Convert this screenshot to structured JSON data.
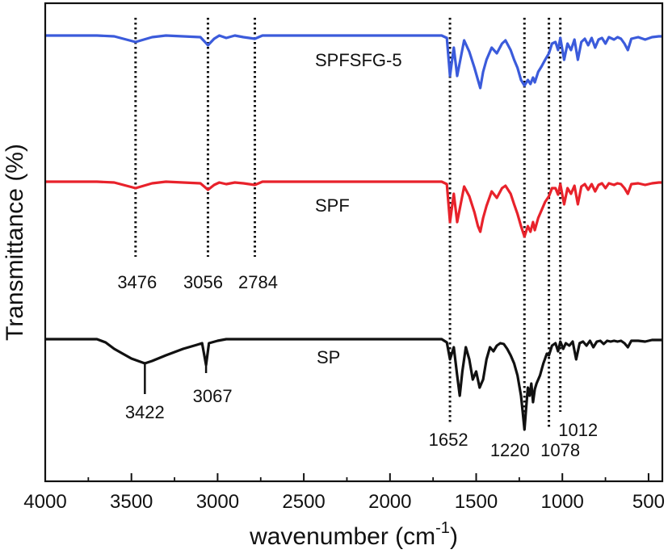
{
  "chart_data": {
    "type": "line",
    "title": "",
    "xlabel": "wavenumber (cm",
    "xlabel_sup": "-1",
    "xlabel_close": ")",
    "ylabel": "Transmittance (%)",
    "xlim": [
      4000,
      420
    ],
    "x_reversed": true,
    "x_ticks": [
      4000,
      3500,
      3000,
      2500,
      2000,
      1500,
      1000,
      500
    ],
    "x_tick_labels": [
      "4000",
      "3500",
      "3000",
      "2500",
      "2000",
      "1500",
      "1000",
      "500"
    ],
    "y_ticks_shown": false,
    "grid": false,
    "legend": "none (series labels placed inside plot)",
    "series": [
      {
        "name": "SPFSFG-5",
        "color": "#3b5bdb",
        "points": [
          [
            4000,
            0
          ],
          [
            3700,
            0
          ],
          [
            3600,
            -1
          ],
          [
            3476,
            -8
          ],
          [
            3380,
            -2
          ],
          [
            3300,
            0
          ],
          [
            3200,
            -1
          ],
          [
            3100,
            -2
          ],
          [
            3056,
            -12
          ],
          [
            3020,
            -4
          ],
          [
            2990,
            0
          ],
          [
            2950,
            -3
          ],
          [
            2900,
            0
          ],
          [
            2850,
            -2
          ],
          [
            2784,
            -4
          ],
          [
            2740,
            0
          ],
          [
            2600,
            0
          ],
          [
            2400,
            0
          ],
          [
            2200,
            0
          ],
          [
            2000,
            0
          ],
          [
            1800,
            0
          ],
          [
            1700,
            0
          ],
          [
            1670,
            -3
          ],
          [
            1652,
            -50
          ],
          [
            1630,
            -15
          ],
          [
            1610,
            -50
          ],
          [
            1590,
            -28
          ],
          [
            1570,
            -6
          ],
          [
            1540,
            -20
          ],
          [
            1510,
            -40
          ],
          [
            1490,
            -55
          ],
          [
            1476,
            -65
          ],
          [
            1460,
            -45
          ],
          [
            1440,
            -30
          ],
          [
            1410,
            -15
          ],
          [
            1380,
            -22
          ],
          [
            1350,
            -10
          ],
          [
            1330,
            -6
          ],
          [
            1300,
            -18
          ],
          [
            1280,
            -30
          ],
          [
            1260,
            -40
          ],
          [
            1240,
            -55
          ],
          [
            1220,
            -62
          ],
          [
            1200,
            -55
          ],
          [
            1185,
            -60
          ],
          [
            1170,
            -52
          ],
          [
            1160,
            -58
          ],
          [
            1140,
            -45
          ],
          [
            1120,
            -38
          ],
          [
            1100,
            -30
          ],
          [
            1078,
            -22
          ],
          [
            1060,
            -10
          ],
          [
            1040,
            -8
          ],
          [
            1025,
            -18
          ],
          [
            1012,
            -3
          ],
          [
            990,
            -30
          ],
          [
            970,
            -10
          ],
          [
            950,
            -18
          ],
          [
            930,
            -5
          ],
          [
            910,
            -30
          ],
          [
            890,
            -8
          ],
          [
            870,
            -4
          ],
          [
            850,
            -12
          ],
          [
            830,
            -3
          ],
          [
            810,
            -15
          ],
          [
            790,
            -5
          ],
          [
            770,
            -3
          ],
          [
            750,
            -10
          ],
          [
            730,
            -2
          ],
          [
            700,
            -5
          ],
          [
            680,
            -2
          ],
          [
            660,
            -4
          ],
          [
            640,
            -10
          ],
          [
            620,
            -18
          ],
          [
            600,
            -4
          ],
          [
            560,
            -2
          ],
          [
            520,
            -5
          ],
          [
            480,
            -2
          ],
          [
            440,
            -1
          ],
          [
            420,
            -1
          ]
        ]
      },
      {
        "name": "SPF",
        "color": "#e8222b",
        "points": [
          [
            4000,
            0
          ],
          [
            3700,
            0
          ],
          [
            3600,
            -1
          ],
          [
            3476,
            -8
          ],
          [
            3380,
            -2
          ],
          [
            3300,
            0
          ],
          [
            3200,
            -1
          ],
          [
            3100,
            -2
          ],
          [
            3056,
            -10
          ],
          [
            3020,
            -4
          ],
          [
            2990,
            -1
          ],
          [
            2950,
            -3
          ],
          [
            2900,
            -1
          ],
          [
            2850,
            -2
          ],
          [
            2784,
            -4
          ],
          [
            2740,
            0
          ],
          [
            2600,
            0
          ],
          [
            2400,
            0
          ],
          [
            2200,
            0
          ],
          [
            2000,
            0
          ],
          [
            1800,
            0
          ],
          [
            1700,
            0
          ],
          [
            1670,
            -3
          ],
          [
            1652,
            -50
          ],
          [
            1630,
            -15
          ],
          [
            1610,
            -50
          ],
          [
            1590,
            -28
          ],
          [
            1570,
            -6
          ],
          [
            1540,
            -18
          ],
          [
            1510,
            -38
          ],
          [
            1490,
            -55
          ],
          [
            1476,
            -62
          ],
          [
            1460,
            -45
          ],
          [
            1440,
            -30
          ],
          [
            1410,
            -12
          ],
          [
            1380,
            -20
          ],
          [
            1350,
            -8
          ],
          [
            1330,
            -5
          ],
          [
            1300,
            -15
          ],
          [
            1280,
            -28
          ],
          [
            1260,
            -40
          ],
          [
            1240,
            -55
          ],
          [
            1220,
            -68
          ],
          [
            1200,
            -55
          ],
          [
            1185,
            -62
          ],
          [
            1170,
            -50
          ],
          [
            1160,
            -60
          ],
          [
            1140,
            -45
          ],
          [
            1120,
            -35
          ],
          [
            1100,
            -25
          ],
          [
            1078,
            -18
          ],
          [
            1060,
            -8
          ],
          [
            1040,
            -8
          ],
          [
            1025,
            -16
          ],
          [
            1012,
            -3
          ],
          [
            990,
            -28
          ],
          [
            970,
            -8
          ],
          [
            950,
            -15
          ],
          [
            930,
            -5
          ],
          [
            910,
            -28
          ],
          [
            890,
            -6
          ],
          [
            870,
            -3
          ],
          [
            850,
            -10
          ],
          [
            830,
            -3
          ],
          [
            810,
            -12
          ],
          [
            790,
            -4
          ],
          [
            770,
            -2
          ],
          [
            750,
            -8
          ],
          [
            730,
            -2
          ],
          [
            700,
            -4
          ],
          [
            680,
            -2
          ],
          [
            660,
            -3
          ],
          [
            640,
            -8
          ],
          [
            620,
            -15
          ],
          [
            600,
            -3
          ],
          [
            560,
            -2
          ],
          [
            520,
            -4
          ],
          [
            480,
            -2
          ],
          [
            440,
            -1
          ],
          [
            420,
            -1
          ]
        ]
      },
      {
        "name": "SP",
        "color": "#111111",
        "points": [
          [
            4000,
            0
          ],
          [
            3700,
            0
          ],
          [
            3650,
            -4
          ],
          [
            3600,
            -12
          ],
          [
            3550,
            -18
          ],
          [
            3500,
            -24
          ],
          [
            3422,
            -30
          ],
          [
            3380,
            -27
          ],
          [
            3300,
            -20
          ],
          [
            3200,
            -12
          ],
          [
            3120,
            -7
          ],
          [
            3090,
            -5
          ],
          [
            3067,
            -32
          ],
          [
            3050,
            -5
          ],
          [
            3000,
            -2
          ],
          [
            2950,
            0
          ],
          [
            2800,
            0
          ],
          [
            2600,
            0
          ],
          [
            2400,
            0
          ],
          [
            2200,
            0
          ],
          [
            2000,
            0
          ],
          [
            1800,
            0
          ],
          [
            1700,
            0
          ],
          [
            1670,
            -4
          ],
          [
            1652,
            -25
          ],
          [
            1630,
            -10
          ],
          [
            1610,
            -45
          ],
          [
            1595,
            -70
          ],
          [
            1580,
            -40
          ],
          [
            1560,
            -10
          ],
          [
            1540,
            -25
          ],
          [
            1520,
            -50
          ],
          [
            1500,
            -40
          ],
          [
            1480,
            -60
          ],
          [
            1470,
            -55
          ],
          [
            1460,
            -50
          ],
          [
            1440,
            -25
          ],
          [
            1420,
            -10
          ],
          [
            1400,
            -15
          ],
          [
            1380,
            -8
          ],
          [
            1360,
            -5
          ],
          [
            1340,
            -6
          ],
          [
            1320,
            -12
          ],
          [
            1300,
            -20
          ],
          [
            1280,
            -30
          ],
          [
            1260,
            -45
          ],
          [
            1240,
            -70
          ],
          [
            1230,
            -90
          ],
          [
            1220,
            -112
          ],
          [
            1210,
            -85
          ],
          [
            1200,
            -60
          ],
          [
            1190,
            -70
          ],
          [
            1180,
            -55
          ],
          [
            1170,
            -78
          ],
          [
            1160,
            -62
          ],
          [
            1150,
            -55
          ],
          [
            1130,
            -45
          ],
          [
            1110,
            -30
          ],
          [
            1090,
            -18
          ],
          [
            1078,
            -20
          ],
          [
            1060,
            -8
          ],
          [
            1040,
            -5
          ],
          [
            1025,
            -15
          ],
          [
            1012,
            -3
          ],
          [
            995,
            -12
          ],
          [
            980,
            -5
          ],
          [
            960,
            -8
          ],
          [
            940,
            -3
          ],
          [
            920,
            -25
          ],
          [
            900,
            -5
          ],
          [
            880,
            -3
          ],
          [
            860,
            -8
          ],
          [
            840,
            -2
          ],
          [
            820,
            -10
          ],
          [
            800,
            -3
          ],
          [
            780,
            -2
          ],
          [
            760,
            -6
          ],
          [
            740,
            -2
          ],
          [
            720,
            -3
          ],
          [
            700,
            -2
          ],
          [
            680,
            -3
          ],
          [
            660,
            -2
          ],
          [
            640,
            -5
          ],
          [
            620,
            -10
          ],
          [
            600,
            -2
          ],
          [
            560,
            -2
          ],
          [
            520,
            -3
          ],
          [
            480,
            -1
          ],
          [
            440,
            -1
          ],
          [
            420,
            -1
          ]
        ]
      }
    ],
    "annotations": [
      {
        "text": "3476",
        "series": "SPF",
        "x": 3476
      },
      {
        "text": "3056",
        "series": "SPF",
        "x": 3056
      },
      {
        "text": "2784",
        "series": "SPF",
        "x": 2784
      },
      {
        "text": "3422",
        "series": "SP",
        "x": 3422
      },
      {
        "text": "3067",
        "series": "SP",
        "x": 3067
      },
      {
        "text": "1652",
        "series": "SP",
        "x": 1652
      },
      {
        "text": "1220",
        "series": "SP",
        "x": 1220
      },
      {
        "text": "1078",
        "series": "SP",
        "x": 1078
      },
      {
        "text": "1012",
        "series": "SP",
        "x": 1012
      }
    ],
    "dotted_reference_lines": [
      3476,
      3056,
      2784,
      1652,
      1220,
      1078,
      1012
    ],
    "series_labels": [
      "SPFSFG-5",
      "SPF",
      "SP"
    ]
  }
}
